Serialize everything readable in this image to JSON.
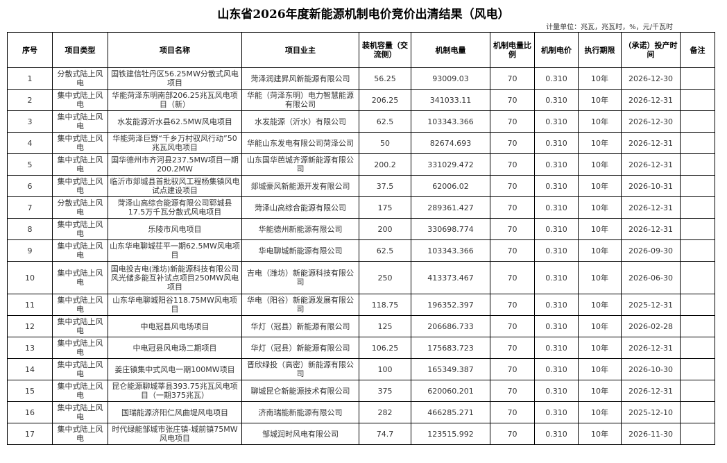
{
  "header": {
    "title": "山东省2026年度新能源机制电价竞价出清结果（风电）",
    "unit": "计量单位：兆瓦，兆瓦时，%，元/千瓦时"
  },
  "table": {
    "columns": [
      "序号",
      "项目类型",
      "项目名称",
      "项目业主",
      "装机容量（交流侧）",
      "机制电量",
      "机制电量比例",
      "机制电价",
      "执行期限",
      "（承诺）投产时间",
      "备注"
    ],
    "rows": [
      [
        "1",
        "分散式陆上风电",
        "国铁建信牡丹区56.25MW分散式风电项目",
        "菏泽润建昇风新能源有限公司",
        "56.25",
        "93009.03",
        "70",
        "0.310",
        "10年",
        "2026-12-30"
      ],
      [
        "2",
        "集中式陆上风电",
        "华能菏泽东明南部206.25兆瓦风电项目（新）",
        "华能（菏泽东明）电力智慧能源有限公司",
        "206.25",
        "341033.11",
        "70",
        "0.310",
        "10年",
        "2026-12-31"
      ],
      [
        "3",
        "集中式陆上风电",
        "水发能源沂水县62.5MW风电项目",
        "水发能源（沂水）有限公司",
        "62.5",
        "103343.366",
        "70",
        "0.310",
        "10年",
        "2026-12-30"
      ],
      [
        "4",
        "集中式陆上风电",
        "华能菏泽巨野“千乡万村驭风行动”50兆瓦风电项目",
        "华能山东发电有限公司菏泽公司",
        "50",
        "82674.693",
        "70",
        "0.310",
        "10年",
        "2026-12-31"
      ],
      [
        "5",
        "集中式陆上风电",
        "国华德州市齐河县237.5MW项目一期200.2MW",
        "山东国华芭城齐源新能源有限公司",
        "200.2",
        "331029.472",
        "70",
        "0.310",
        "10年",
        "2026-12-31"
      ],
      [
        "6",
        "集中式陆上风电",
        "临沂市郯城县首批驭风工程杨集镇风电试点建设项目",
        "郯城豪风新能源开发有限公司",
        "37.5",
        "62006.02",
        "70",
        "0.310",
        "10年",
        "2026-10-31"
      ],
      [
        "7",
        "分散式陆上风电",
        "菏泽山高综合能源有限公司郓城县17.5万千瓦分散式风电项目",
        "菏泽山高综合能源有限公司",
        "175",
        "289361.427",
        "70",
        "0.310",
        "10年",
        "2026-12-31"
      ],
      [
        "8",
        "集中式陆上风电",
        "乐陵市风电项目",
        "华能德州新能源有限公司",
        "200",
        "330698.774",
        "70",
        "0.310",
        "10年",
        "2026-12-31"
      ],
      [
        "9",
        "集中式陆上风电",
        "山东华电聊城茌平一期62.5MW风电项目",
        "华电聊城新能源有限公司",
        "62.5",
        "103343.366",
        "70",
        "0.310",
        "10年",
        "2026-09-30"
      ],
      [
        "10",
        "集中式陆上风电",
        "国电投吉电(潍坊)新能源科技有限公司风光储多能互补试点项目250MW风电项目",
        "吉电（潍坊）新能源科技有限公司",
        "250",
        "413373.467",
        "70",
        "0.310",
        "10年",
        "2026-06-30"
      ],
      [
        "11",
        "集中式陆上风电",
        "山东华电聊城阳谷118.75MW风电项目",
        "华电（阳谷）新能源发展有限公司",
        "118.75",
        "196352.397",
        "70",
        "0.310",
        "10年",
        "2025-12-31"
      ],
      [
        "12",
        "集中式陆上风电",
        "中电冠县风电场项目",
        "华灯（冠县）新能源有限公司",
        "125",
        "206686.733",
        "70",
        "0.310",
        "10年",
        "2026-02-28"
      ],
      [
        "13",
        "集中式陆上风电",
        "中电冠县风电场二期项目",
        "华灯（冠县）新能源有限公司",
        "106.25",
        "175683.723",
        "70",
        "0.310",
        "10年",
        "2026-12-31"
      ],
      [
        "14",
        "集中式陆上风电",
        "姜庄镇集中式风电一期100MW项目",
        "晋欣绿投（高密）新能源有限公司",
        "100",
        "165349.387",
        "70",
        "0.310",
        "10年",
        "2026-10-30"
      ],
      [
        "15",
        "集中式陆上风电",
        "昆仑能源聊城莘县393.75兆瓦风电项目（一期375兆瓦）",
        "聊城昆仑新能源技术有限公司",
        "375",
        "620060.201",
        "70",
        "0.310",
        "10年",
        "2026-12-31"
      ],
      [
        "16",
        "集中式陆上风电",
        "国瑞能源济阳仁风曲堤风电项目",
        "济南瑞能新能源有限公司",
        "282",
        "466285.271",
        "70",
        "0.310",
        "10年",
        "2025-12-10"
      ],
      [
        "17",
        "集中式陆上风电",
        "时代绿能邹城市张庄镇-城前镇75MW风电项目",
        "邹城润时风电有限公司",
        "74.7",
        "123515.992",
        "70",
        "0.310",
        "10年",
        "2026-11-30"
      ]
    ]
  }
}
